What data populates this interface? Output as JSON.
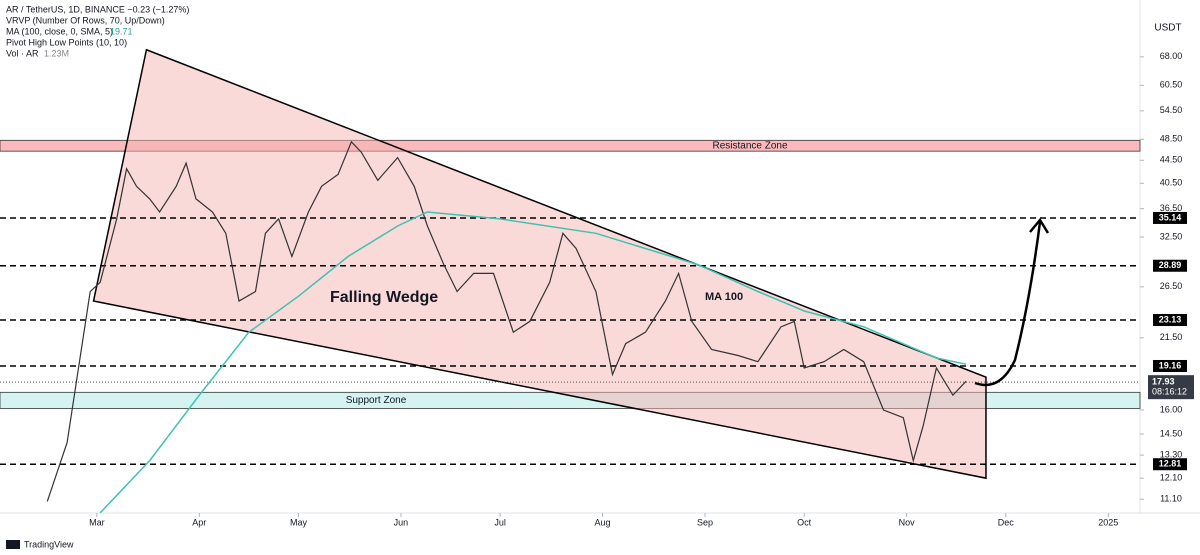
{
  "chart_data": {
    "type": "line",
    "legend_lines": [
      "AR / TetherUS, 1D, BINANCE  −0.23 (−1.27%)",
      "VRVP (Number Of Rows, 70, Up/Down)",
      "MA (100, close, 0, SMA, 5)",
      "Pivot High Low Points (10, 10)",
      "Vol · AR"
    ],
    "ma_value": "19.71",
    "volume_value": "1.23M",
    "currency": "USDT",
    "brand": "TradingView",
    "log_scale": true,
    "xlim": [
      30.7,
      375.6
    ],
    "xticks": [
      {
        "value": 60,
        "label": "Mar"
      },
      {
        "value": 91,
        "label": "Apr"
      },
      {
        "value": 121,
        "label": "May"
      },
      {
        "value": 152,
        "label": "Jun"
      },
      {
        "value": 182,
        "label": "Jul"
      },
      {
        "value": 213,
        "label": "Aug"
      },
      {
        "value": 244,
        "label": "Sep"
      },
      {
        "value": 274,
        "label": "Oct"
      },
      {
        "value": 305,
        "label": "Nov"
      },
      {
        "value": 335,
        "label": "Dec"
      },
      {
        "value": 366,
        "label": "2025"
      }
    ],
    "ylim": [
      10.49,
      75.9
    ],
    "yticks": [
      {
        "value": 68,
        "label": "68.00"
      },
      {
        "value": 60.5,
        "label": "60.50"
      },
      {
        "value": 54.5,
        "label": "54.50"
      },
      {
        "value": 48.5,
        "label": "48.50"
      },
      {
        "value": 44.5,
        "label": "44.50"
      },
      {
        "value": 40.5,
        "label": "40.50"
      },
      {
        "value": 36.5,
        "label": "36.50"
      },
      {
        "value": 32.5,
        "label": "32.50"
      },
      {
        "value": 26.5,
        "label": "26.50"
      },
      {
        "value": 21.5,
        "label": "21.50"
      },
      {
        "value": 16,
        "label": "16.00"
      },
      {
        "value": 14.5,
        "label": "14.50"
      },
      {
        "value": 13.3,
        "label": "13.30"
      },
      {
        "value": 12.1,
        "label": "12.10"
      },
      {
        "value": 11.1,
        "label": "11.10"
      }
    ],
    "series": [
      {
        "name": "AR / TetherUS",
        "color": "#26a69a",
        "x": [
          45,
          51,
          58,
          61,
          66,
          69,
          72,
          76,
          79,
          84,
          87,
          90,
          95,
          99,
          103,
          108,
          111,
          115,
          119,
          124,
          128,
          133,
          137,
          140,
          145,
          151,
          156,
          160,
          165,
          169,
          174,
          180,
          186,
          191,
          197,
          201,
          205,
          211,
          216,
          220,
          226,
          232,
          236,
          240,
          246,
          254,
          260,
          267,
          271,
          274,
          280,
          286,
          292,
          298,
          304,
          307,
          310,
          314,
          319,
          323
        ],
        "values": [
          11,
          14,
          26,
          27,
          35,
          43,
          40,
          38,
          36,
          40,
          44,
          38,
          36,
          33,
          25,
          26,
          33,
          35,
          30,
          36,
          40,
          42,
          48,
          46,
          41,
          45,
          40,
          34,
          29,
          26,
          28,
          28,
          22,
          23,
          27,
          33,
          31,
          26,
          18.5,
          21,
          22,
          25,
          28,
          23,
          20.5,
          20,
          19.5,
          22.5,
          23,
          19,
          19.5,
          20.5,
          19.5,
          16,
          15.5,
          13,
          15,
          19,
          17,
          18
        ]
      },
      {
        "name": "MA 100",
        "color": "#3ec2b0",
        "x": [
          61,
          76,
          91,
          106,
          121,
          136,
          151,
          160,
          182,
          211,
          242,
          260,
          274,
          292,
          314,
          323
        ],
        "values": [
          10.5,
          13,
          17,
          22,
          25.5,
          30,
          34,
          36,
          35,
          33,
          29,
          26,
          24,
          22.5,
          19.8,
          19.3
        ]
      }
    ],
    "levels": [
      35.14,
      28.89,
      23.13,
      19.16,
      12.81
    ],
    "last_price": 17.93,
    "countdown": "08:16:12",
    "zones": [
      {
        "name": "Resistance Zone",
        "low": 46.2,
        "high": 48.3,
        "color": "#f7a8ad"
      },
      {
        "name": "Support Zone",
        "low": 16.1,
        "high": 17.2,
        "color": "#c9f0ee"
      }
    ],
    "wedge": {
      "label": "Falling Wedge",
      "upper": {
        "x": [
          75,
          329
        ],
        "y": [
          70,
          18.3
        ]
      },
      "lower": {
        "x": [
          59,
          329
        ],
        "y": [
          25,
          12.1
        ]
      }
    }
  }
}
